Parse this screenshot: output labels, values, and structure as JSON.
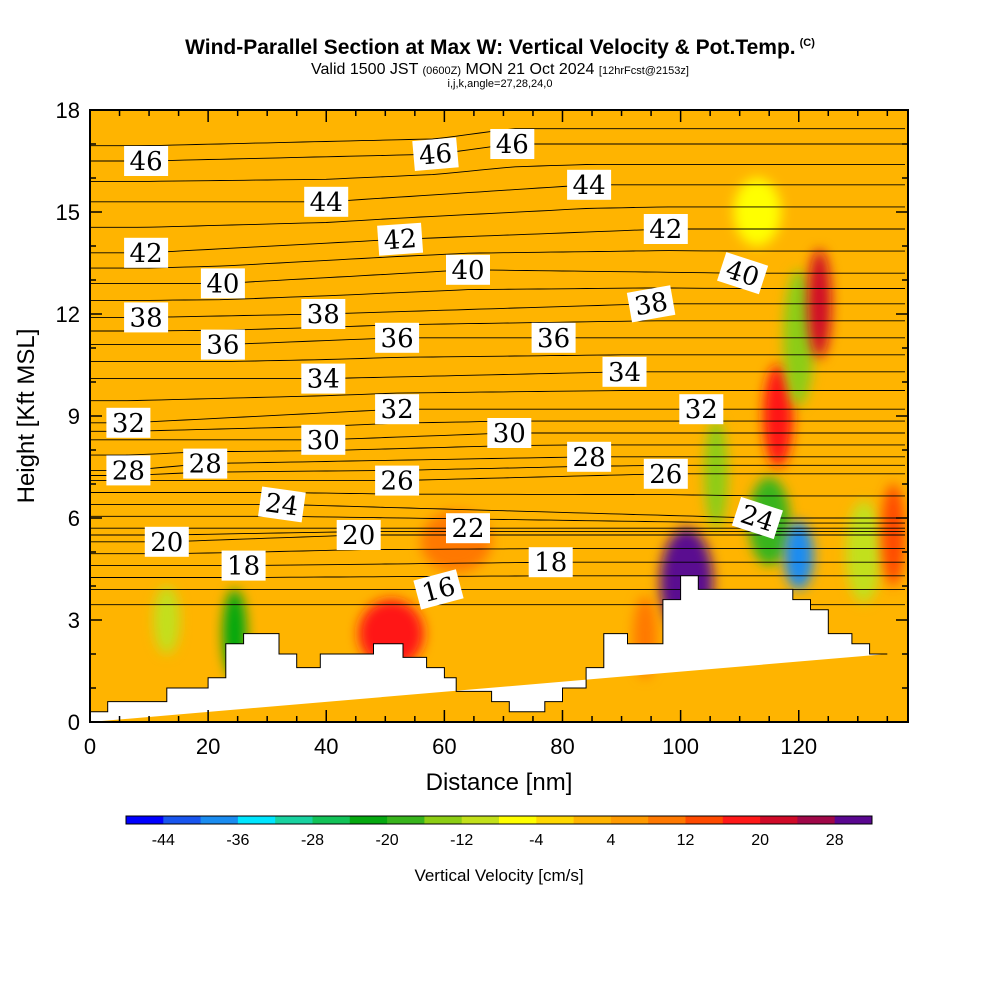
{
  "header": {
    "title": "Wind-Parallel Section at Max W: Vertical Velocity & Pot.Temp.",
    "copyright": "(C)",
    "valid_prefix": "Valid 1500 JST",
    "valid_utc": "(0600Z)",
    "valid_date": "MON 21 Oct 2024",
    "forecast_note": "[12hrFcst@2153z]",
    "indices": "i,j,k,angle=27,28,24,0"
  },
  "colors": {
    "background": "#ffffff",
    "axis": "#000000",
    "terrain": "#ffffff",
    "contour_line": "#000000"
  },
  "chart_data": {
    "type": "heatmap",
    "xlabel": "Distance [nm]",
    "ylabel": "Height [Kft MSL]",
    "xlim": [
      0,
      138.5
    ],
    "ylim": [
      0,
      18
    ],
    "x_ticks": [
      "0",
      "20",
      "40",
      "60",
      "80",
      "100",
      "120"
    ],
    "y_ticks": [
      "0",
      "3",
      "6",
      "9",
      "12",
      "15",
      "18"
    ],
    "colorbar": {
      "title": "Vertical Velocity [cm/s]",
      "tick_labels": [
        "-44",
        "-36",
        "-28",
        "-20",
        "-12",
        "-4",
        "4",
        "12",
        "20",
        "28"
      ],
      "tick_values": [
        -44,
        -36,
        -28,
        -20,
        -12,
        -4,
        4,
        12,
        20,
        28
      ],
      "bounds": [
        -48,
        -44,
        -40,
        -36,
        -32,
        -28,
        -24,
        -20,
        -16,
        -12,
        -8,
        -4,
        0,
        4,
        8,
        12,
        16,
        20,
        24,
        28,
        32
      ],
      "colors": [
        "#0000ff",
        "#1855ee",
        "#1a8cf0",
        "#00e6ff",
        "#18d2a0",
        "#12c258",
        "#05a810",
        "#38b41c",
        "#8ccd14",
        "#c2e01a",
        "#ffff00",
        "#ffd800",
        "#ffb400",
        "#ff9a00",
        "#ff7800",
        "#ff4a00",
        "#ff1818",
        "#d00a28",
        "#a00848",
        "#5a0890"
      ]
    },
    "vertical_velocity_features": [
      {
        "x": 24.5,
        "y": 2.6,
        "rx": 2.0,
        "ry": 1.3,
        "value": -22
      },
      {
        "x": 13.0,
        "y": 3.0,
        "rx": 2.2,
        "ry": 1.0,
        "value": -10
      },
      {
        "x": 51.0,
        "y": 2.6,
        "rx": 5.5,
        "ry": 1.0,
        "value": 16
      },
      {
        "x": 62.0,
        "y": 5.3,
        "rx": 6.0,
        "ry": 0.9,
        "value": 8
      },
      {
        "x": 101.0,
        "y": 4.1,
        "rx": 4.5,
        "ry": 1.6,
        "value": 30
      },
      {
        "x": 106.0,
        "y": 7.3,
        "rx": 2.0,
        "ry": 1.6,
        "value": -14
      },
      {
        "x": 115.0,
        "y": 5.9,
        "rx": 3.5,
        "ry": 1.3,
        "value": -18
      },
      {
        "x": 120.0,
        "y": 4.9,
        "rx": 2.5,
        "ry": 1.0,
        "value": -40
      },
      {
        "x": 116.5,
        "y": 9.0,
        "rx": 2.5,
        "ry": 1.5,
        "value": 18
      },
      {
        "x": 120.0,
        "y": 11.3,
        "rx": 2.6,
        "ry": 2.0,
        "value": -16
      },
      {
        "x": 123.5,
        "y": 12.3,
        "rx": 2.0,
        "ry": 1.6,
        "value": 20
      },
      {
        "x": 113.0,
        "y": 15.0,
        "rx": 4.0,
        "ry": 1.0,
        "value": -6
      },
      {
        "x": 131.0,
        "y": 5.0,
        "rx": 3.0,
        "ry": 1.5,
        "value": -12
      },
      {
        "x": 136.0,
        "y": 5.5,
        "rx": 2.0,
        "ry": 1.5,
        "value": 12
      },
      {
        "x": 94.0,
        "y": 2.5,
        "rx": 2.0,
        "ry": 1.2,
        "value": 10
      }
    ],
    "terrain_profile": {
      "x": [
        0,
        3,
        3,
        13,
        13,
        20,
        20,
        23,
        23,
        26,
        26,
        32,
        32,
        35,
        35,
        39,
        39,
        44,
        44,
        48,
        48,
        53,
        53,
        57,
        57,
        60,
        60,
        62,
        62,
        68,
        68,
        71,
        71,
        77,
        77,
        80,
        80,
        84,
        84,
        87,
        87,
        91,
        91,
        97,
        97,
        100,
        100,
        103,
        103,
        119,
        119,
        122,
        122,
        125,
        125,
        129,
        129,
        132,
        132,
        135,
        135,
        138.5
      ],
      "height_kft": [
        0.3,
        0.3,
        0.6,
        0.6,
        1.0,
        1.0,
        1.3,
        1.3,
        2.3,
        2.3,
        2.6,
        2.6,
        2.0,
        2.0,
        1.6,
        1.6,
        2.0,
        2.0,
        2.0,
        2.0,
        2.3,
        2.3,
        1.9,
        1.9,
        1.6,
        1.6,
        1.3,
        1.3,
        0.9,
        0.9,
        0.6,
        0.6,
        0.3,
        0.3,
        0.6,
        0.6,
        1.0,
        1.0,
        1.6,
        1.6,
        2.6,
        2.6,
        2.3,
        2.3,
        3.6,
        3.6,
        4.3,
        4.3,
        3.9,
        3.9,
        3.6,
        3.6,
        3.3,
        3.3,
        2.6,
        2.6,
        2.3,
        2.3,
        2.0,
        2.0
      ]
    },
    "theta_contour_labels": [
      {
        "text": "46",
        "x": 9.5,
        "y": 16.5,
        "angle": 0
      },
      {
        "text": "46",
        "x": 58.5,
        "y": 16.7,
        "angle": -5
      },
      {
        "text": "46",
        "x": 71.5,
        "y": 17.0,
        "angle": 0
      },
      {
        "text": "44",
        "x": 40.0,
        "y": 15.3,
        "angle": 0
      },
      {
        "text": "44",
        "x": 84.5,
        "y": 15.8,
        "angle": 0
      },
      {
        "text": "42",
        "x": 9.5,
        "y": 13.8,
        "angle": 0
      },
      {
        "text": "42",
        "x": 52.5,
        "y": 14.2,
        "angle": -4
      },
      {
        "text": "42",
        "x": 97.5,
        "y": 14.5,
        "angle": 0
      },
      {
        "text": "40",
        "x": 22.5,
        "y": 12.9,
        "angle": 0
      },
      {
        "text": "40",
        "x": 64.0,
        "y": 13.3,
        "angle": 0
      },
      {
        "text": "40",
        "x": 110.5,
        "y": 13.2,
        "angle": 18
      },
      {
        "text": "38",
        "x": 9.5,
        "y": 11.9,
        "angle": 0
      },
      {
        "text": "38",
        "x": 39.5,
        "y": 12.0,
        "angle": 0
      },
      {
        "text": "38",
        "x": 95.0,
        "y": 12.3,
        "angle": -10
      },
      {
        "text": "36",
        "x": 22.5,
        "y": 11.1,
        "angle": 0
      },
      {
        "text": "36",
        "x": 52.0,
        "y": 11.3,
        "angle": 0
      },
      {
        "text": "36",
        "x": 78.5,
        "y": 11.3,
        "angle": 0
      },
      {
        "text": "34",
        "x": 39.5,
        "y": 10.1,
        "angle": 0
      },
      {
        "text": "34",
        "x": 90.5,
        "y": 10.3,
        "angle": 0
      },
      {
        "text": "32",
        "x": 6.5,
        "y": 8.8,
        "angle": 0
      },
      {
        "text": "32",
        "x": 52.0,
        "y": 9.2,
        "angle": 0
      },
      {
        "text": "32",
        "x": 103.5,
        "y": 9.2,
        "angle": 0
      },
      {
        "text": "30",
        "x": 39.5,
        "y": 8.3,
        "angle": 0
      },
      {
        "text": "30",
        "x": 71.0,
        "y": 8.5,
        "angle": 0
      },
      {
        "text": "28",
        "x": 6.5,
        "y": 7.4,
        "angle": 0
      },
      {
        "text": "28",
        "x": 19.5,
        "y": 7.6,
        "angle": 0
      },
      {
        "text": "28",
        "x": 84.5,
        "y": 7.8,
        "angle": 0
      },
      {
        "text": "26",
        "x": 52.0,
        "y": 7.1,
        "angle": 0
      },
      {
        "text": "26",
        "x": 97.5,
        "y": 7.3,
        "angle": 0
      },
      {
        "text": "24",
        "x": 32.5,
        "y": 6.4,
        "angle": 8
      },
      {
        "text": "24",
        "x": 113.0,
        "y": 6.0,
        "angle": 18
      },
      {
        "text": "22",
        "x": 64.0,
        "y": 5.7,
        "angle": 0
      },
      {
        "text": "20",
        "x": 13.0,
        "y": 5.3,
        "angle": 0
      },
      {
        "text": "20",
        "x": 45.5,
        "y": 5.5,
        "angle": 0
      },
      {
        "text": "18",
        "x": 26.0,
        "y": 4.6,
        "angle": 0
      },
      {
        "text": "18",
        "x": 78.0,
        "y": 4.7,
        "angle": 0
      },
      {
        "text": "16",
        "x": 59.0,
        "y": 3.9,
        "angle": -15
      }
    ]
  }
}
